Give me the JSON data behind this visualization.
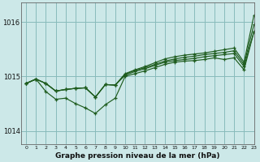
{
  "background_color": "#cce8e8",
  "grid_color": "#88bbbb",
  "line_color": "#1e5c1e",
  "title": "Graphe pression niveau de la mer (hPa)",
  "xlim": [
    -0.5,
    23
  ],
  "ylim": [
    1013.75,
    1016.35
  ],
  "yticks": [
    1014,
    1015,
    1016
  ],
  "xticks": [
    0,
    1,
    2,
    3,
    4,
    5,
    6,
    7,
    8,
    9,
    10,
    11,
    12,
    13,
    14,
    15,
    16,
    17,
    18,
    19,
    20,
    21,
    22,
    23
  ],
  "lines": [
    [
      1014.87,
      1014.95,
      1014.87,
      1014.73,
      1014.76,
      1014.78,
      1014.79,
      1014.62,
      1014.85,
      1014.84,
      1015.02,
      1015.09,
      1015.14,
      1015.2,
      1015.26,
      1015.29,
      1015.31,
      1015.33,
      1015.36,
      1015.38,
      1015.4,
      1015.42,
      1015.18,
      1015.82
    ],
    [
      1014.87,
      1014.95,
      1014.72,
      1014.58,
      1014.6,
      1014.5,
      1014.42,
      1014.32,
      1014.48,
      1014.6,
      1015.0,
      1015.05,
      1015.1,
      1015.16,
      1015.22,
      1015.26,
      1015.28,
      1015.29,
      1015.31,
      1015.34,
      1015.31,
      1015.34,
      1015.12,
      1015.82
    ],
    [
      1014.87,
      1014.95,
      1014.87,
      1014.73,
      1014.76,
      1014.78,
      1014.79,
      1014.62,
      1014.85,
      1014.84,
      1015.05,
      1015.12,
      1015.18,
      1015.25,
      1015.32,
      1015.36,
      1015.39,
      1015.41,
      1015.43,
      1015.46,
      1015.49,
      1015.52,
      1015.26,
      1016.12
    ],
    [
      1014.87,
      1014.95,
      1014.87,
      1014.73,
      1014.76,
      1014.78,
      1014.79,
      1014.62,
      1014.85,
      1014.84,
      1015.04,
      1015.11,
      1015.16,
      1015.22,
      1015.28,
      1015.32,
      1015.35,
      1015.37,
      1015.4,
      1015.42,
      1015.44,
      1015.47,
      1015.22,
      1015.95
    ]
  ]
}
